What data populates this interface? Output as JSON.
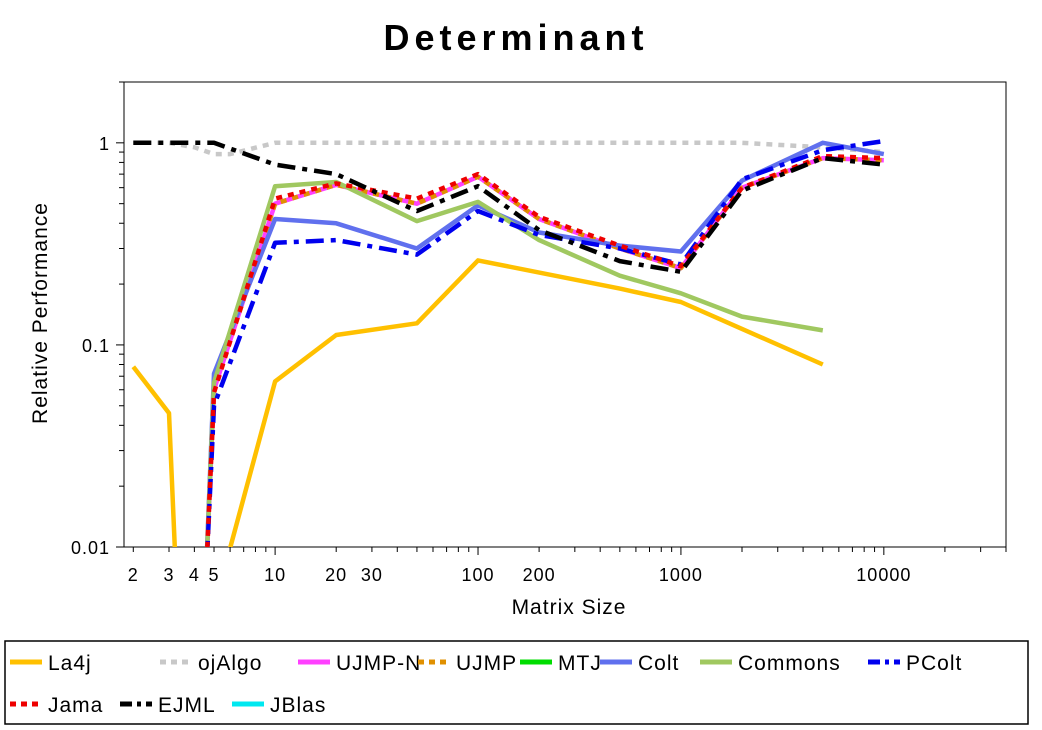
{
  "chart_data": {
    "type": "line",
    "title": "Determinant",
    "xlabel": "Matrix Size",
    "ylabel": "Relative Performance",
    "x_scale": "log",
    "y_scale": "log",
    "xlim": [
      1.8,
      40000
    ],
    "ylim": [
      0.01,
      2
    ],
    "x_ticks": [
      {
        "value": 2,
        "label": "2"
      },
      {
        "value": 3,
        "label": "3"
      },
      {
        "value": 4,
        "label": "4"
      },
      {
        "value": 5,
        "label": "5"
      },
      {
        "value": 10,
        "label": "10"
      },
      {
        "value": 20,
        "label": "20"
      },
      {
        "value": 30,
        "label": "30"
      },
      {
        "value": 100,
        "label": "100"
      },
      {
        "value": 200,
        "label": "200"
      },
      {
        "value": 1000,
        "label": "1000"
      },
      {
        "value": 10000,
        "label": "10000"
      }
    ],
    "y_ticks": [
      {
        "value": 0.01,
        "label": "0.01"
      },
      {
        "value": 0.1,
        "label": "0.1"
      },
      {
        "value": 1,
        "label": "1"
      }
    ],
    "grid": false,
    "legend_position": "bottom",
    "series": [
      {
        "name": "La4j",
        "color": "#ffc000",
        "dash": "solid",
        "points": [
          [
            2,
            0.078
          ],
          [
            3,
            0.046
          ],
          [
            3.3,
            0.005
          ],
          [
            5,
            0.005
          ],
          [
            10,
            0.066
          ],
          [
            20,
            0.112
          ],
          [
            50,
            0.128
          ],
          [
            100,
            0.262
          ],
          [
            500,
            0.19
          ],
          [
            1000,
            0.163
          ],
          [
            2000,
            0.12
          ],
          [
            5000,
            0.08
          ]
        ]
      },
      {
        "name": "ojAlgo",
        "color": "#c8c8c8",
        "dash": "dot",
        "points": [
          [
            2,
            1.0
          ],
          [
            3,
            1.0
          ],
          [
            4,
            0.95
          ],
          [
            5,
            0.88
          ],
          [
            6,
            0.88
          ],
          [
            10,
            1.0
          ],
          [
            20,
            1.0
          ],
          [
            50,
            1.0
          ],
          [
            100,
            1.0
          ],
          [
            200,
            1.0
          ],
          [
            500,
            1.0
          ],
          [
            1000,
            1.0
          ],
          [
            2000,
            1.0
          ],
          [
            5000,
            0.95
          ],
          [
            10000,
            0.9
          ]
        ]
      },
      {
        "name": "UJMP-N",
        "color": "#ff40ff",
        "dash": "solid",
        "points": [
          [
            4.5,
            0.005
          ],
          [
            5,
            0.06
          ],
          [
            10,
            0.5
          ],
          [
            20,
            0.62
          ],
          [
            50,
            0.5
          ],
          [
            100,
            0.68
          ],
          [
            200,
            0.42
          ],
          [
            500,
            0.3
          ],
          [
            1000,
            0.24
          ],
          [
            2000,
            0.6
          ],
          [
            5000,
            0.84
          ],
          [
            10000,
            0.82
          ]
        ]
      },
      {
        "name": "UJMP",
        "color": "#e09000",
        "dash": "dot",
        "points": [
          [
            4.5,
            0.005
          ],
          [
            5,
            0.06
          ],
          [
            10,
            0.5
          ],
          [
            20,
            0.62
          ],
          [
            50,
            0.5
          ],
          [
            100,
            0.68
          ],
          [
            200,
            0.42
          ],
          [
            500,
            0.3
          ],
          [
            1000,
            0.24
          ],
          [
            2000,
            0.6
          ],
          [
            5000,
            0.84
          ],
          [
            10000,
            0.82
          ]
        ]
      },
      {
        "name": "MTJ",
        "color": "#00dd00",
        "dash": "solid",
        "points": []
      },
      {
        "name": "Colt",
        "color": "#6070ee",
        "dash": "solid",
        "points": [
          [
            4.5,
            0.005
          ],
          [
            5,
            0.072
          ],
          [
            10,
            0.42
          ],
          [
            20,
            0.4
          ],
          [
            50,
            0.3
          ],
          [
            100,
            0.49
          ],
          [
            200,
            0.36
          ],
          [
            500,
            0.31
          ],
          [
            1000,
            0.29
          ],
          [
            2000,
            0.65
          ],
          [
            5000,
            1.0
          ],
          [
            10000,
            0.88
          ]
        ]
      },
      {
        "name": "Commons",
        "color": "#a0c860",
        "dash": "solid",
        "points": [
          [
            4.5,
            0.005
          ],
          [
            5,
            0.065
          ],
          [
            10,
            0.61
          ],
          [
            20,
            0.64
          ],
          [
            50,
            0.41
          ],
          [
            100,
            0.51
          ],
          [
            200,
            0.33
          ],
          [
            500,
            0.22
          ],
          [
            1000,
            0.18
          ],
          [
            2000,
            0.138
          ],
          [
            5000,
            0.118
          ]
        ]
      },
      {
        "name": "PColt",
        "color": "#0000ee",
        "dash": "dashdot",
        "points": [
          [
            4.5,
            0.005
          ],
          [
            5,
            0.05
          ],
          [
            10,
            0.32
          ],
          [
            20,
            0.33
          ],
          [
            50,
            0.28
          ],
          [
            100,
            0.46
          ],
          [
            200,
            0.35
          ],
          [
            500,
            0.3
          ],
          [
            1000,
            0.25
          ],
          [
            2000,
            0.66
          ],
          [
            5000,
            0.92
          ],
          [
            10000,
            1.02
          ]
        ]
      },
      {
        "name": "Jama",
        "color": "#ee0000",
        "dash": "dot",
        "points": [
          [
            4.5,
            0.005
          ],
          [
            5,
            0.058
          ],
          [
            10,
            0.53
          ],
          [
            20,
            0.63
          ],
          [
            50,
            0.53
          ],
          [
            100,
            0.7
          ],
          [
            200,
            0.43
          ],
          [
            500,
            0.31
          ],
          [
            1000,
            0.245
          ],
          [
            2000,
            0.6
          ],
          [
            5000,
            0.86
          ],
          [
            10000,
            0.84
          ]
        ]
      },
      {
        "name": "EJML",
        "color": "#000000",
        "dash": "dashdot",
        "points": [
          [
            2,
            1.0
          ],
          [
            3,
            1.0
          ],
          [
            4,
            1.0
          ],
          [
            5,
            1.0
          ],
          [
            10,
            0.78
          ],
          [
            20,
            0.7
          ],
          [
            50,
            0.46
          ],
          [
            100,
            0.61
          ],
          [
            200,
            0.37
          ],
          [
            500,
            0.26
          ],
          [
            1000,
            0.23
          ],
          [
            2000,
            0.58
          ],
          [
            5000,
            0.84
          ],
          [
            10000,
            0.78
          ]
        ]
      },
      {
        "name": "JBlas",
        "color": "#00e8f0",
        "dash": "solid",
        "points": []
      }
    ]
  }
}
